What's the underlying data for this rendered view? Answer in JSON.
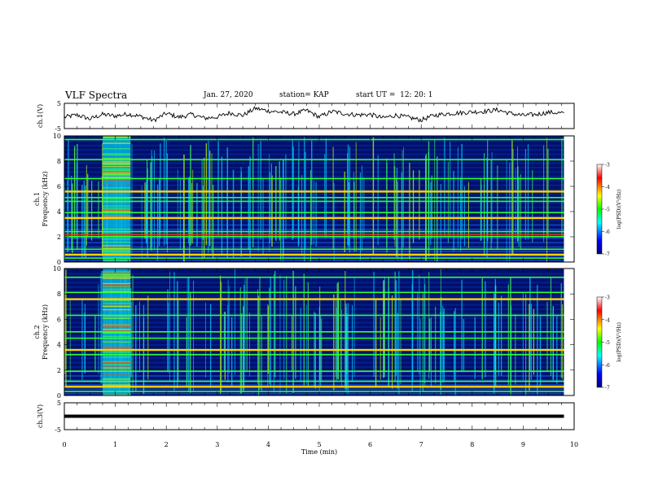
{
  "header": {
    "title": "VLF Spectra",
    "date": "Jan. 27, 2020",
    "station": "station= KAP",
    "start": "start UT =  12: 20: 1"
  },
  "chart_data": [
    {
      "type": "line",
      "ylabel": "ch.1(V)",
      "ylim": [
        -5,
        5
      ],
      "yticks": [
        "5",
        "-5"
      ],
      "xlim": [
        0,
        10
      ],
      "x": [
        0,
        0.25,
        0.5,
        0.75,
        1.0,
        1.25,
        1.5,
        1.75,
        2.0,
        2.25,
        2.5,
        2.75,
        3.0,
        3.25,
        3.5,
        3.75,
        4.0,
        4.25,
        4.5,
        4.75,
        5.0,
        5.25,
        5.5,
        5.75,
        6.0,
        6.25,
        6.5,
        6.75,
        7.0,
        7.25,
        7.5,
        7.75,
        8.0,
        8.25,
        8.5,
        8.75,
        9.0,
        9.25,
        9.5,
        9.8
      ],
      "y": [
        -0.5,
        0.4,
        -1.2,
        0.6,
        0.0,
        0.8,
        -0.2,
        -1.8,
        1.0,
        -0.5,
        0.6,
        -0.9,
        -0.4,
        1.2,
        0.2,
        3.0,
        2.0,
        1.5,
        0.8,
        2.2,
        -0.4,
        1.8,
        0.9,
        0.4,
        0.6,
        -0.8,
        0.3,
        -0.6,
        -1.6,
        0.2,
        0.9,
        1.2,
        1.6,
        1.8,
        2.4,
        1.0,
        0.2,
        0.6,
        1.4,
        1.2
      ]
    },
    {
      "type": "heatmap",
      "ylabel": "ch.1",
      "ylabel2": "Frequency (kHz)",
      "ylim": [
        0,
        10
      ],
      "yticks": [
        "0",
        "2",
        "4",
        "6",
        "8",
        "10"
      ],
      "xlim": [
        0,
        10
      ],
      "data_end_min": 9.8,
      "burst_min": [
        0.75,
        1.3
      ],
      "bands_khz": [
        0.3,
        0.6,
        1.0,
        2.0,
        2.4,
        3.5,
        3.9,
        4.8,
        5.1,
        5.6,
        6.6,
        8.1,
        9.7
      ],
      "colorbar": {
        "label": "log(PSD)(V²/Hz)",
        "ticks": [
          "-3",
          "-4",
          "-5",
          "-6",
          "-7"
        ],
        "range": [
          -7,
          -3
        ]
      }
    },
    {
      "type": "heatmap",
      "ylabel": "ch.2",
      "ylabel2": "Frequency (kHz)",
      "ylim": [
        0,
        10
      ],
      "yticks": [
        "0",
        "2",
        "4",
        "6",
        "8",
        "10"
      ],
      "xlim": [
        0,
        10
      ],
      "data_end_min": 9.8,
      "burst_min": [
        0.75,
        1.3
      ],
      "bands_khz": [
        0.3,
        0.7,
        1.1,
        1.9,
        3.2,
        3.6,
        4.5,
        5.0,
        6.3,
        7.6,
        8.1,
        9.3
      ],
      "colorbar": {
        "label": "log(PSD)(V²/Hz)",
        "ticks": [
          "-3",
          "-4",
          "-5",
          "-6",
          "-7"
        ],
        "range": [
          -7,
          -3
        ]
      }
    },
    {
      "type": "line",
      "ylabel": "ch.3(V)",
      "ylim": [
        -5,
        5
      ],
      "yticks": [
        "5",
        "-5"
      ],
      "xlim": [
        0,
        10
      ],
      "x": [
        0,
        9.8
      ],
      "y": [
        0,
        0
      ],
      "xlabel": "Time (min)",
      "xticks": [
        "0",
        "1",
        "2",
        "3",
        "4",
        "5",
        "6",
        "7",
        "8",
        "9",
        "10"
      ]
    }
  ]
}
